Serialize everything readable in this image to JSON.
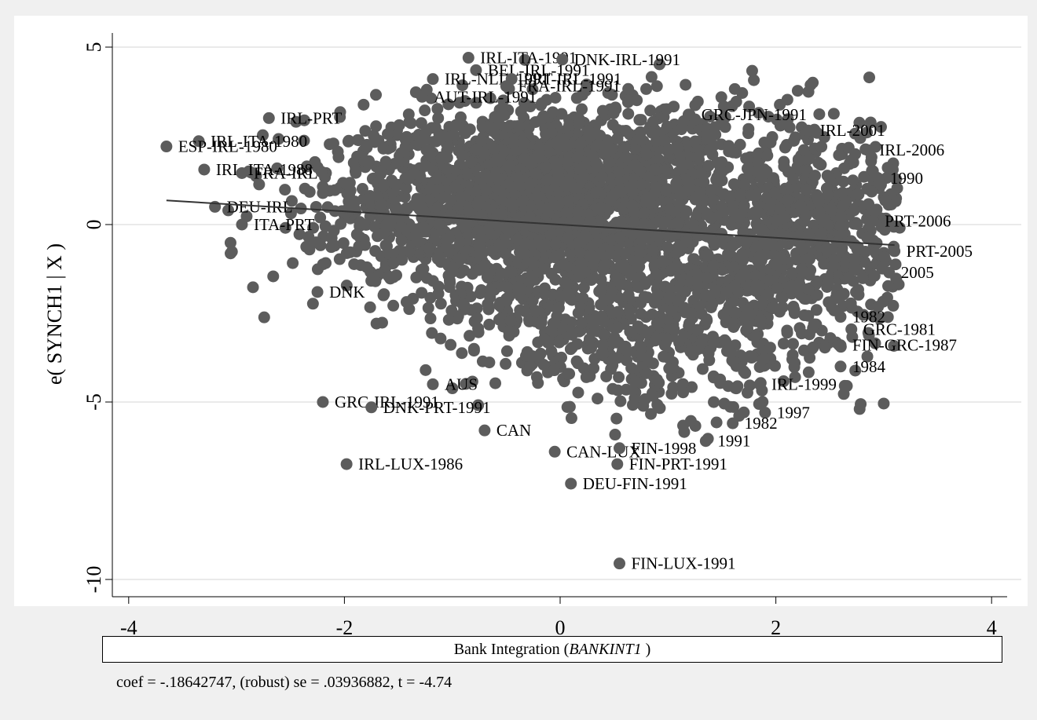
{
  "chart_data": {
    "type": "scatter",
    "title": "",
    "ylabel": "e( SYNCH1 | X )",
    "xlabel": "Bank Integration (",
    "xlabel_italic": "BANKINT1",
    "xlabel_close": " )",
    "caption": "coef = -.18642747, (robust) se = .03936882, t = -4.74",
    "xlim": [
      -4.2,
      4.2
    ],
    "ylim": [
      -10.5,
      5.4
    ],
    "xticks": [
      -4,
      -2,
      0,
      2,
      4
    ],
    "xtick_labels": [
      "-4",
      "-2",
      "0",
      "2",
      "4"
    ],
    "yticks": [
      5,
      0,
      -5,
      -10
    ],
    "ytick_labels": [
      "5",
      "0",
      "-5",
      "-10"
    ],
    "grid": true,
    "fit_line": {
      "slope": -0.18642747,
      "intercept": 0.0,
      "x": [
        -3.65,
        3.1
      ]
    },
    "labeled_points": [
      {
        "x": -0.85,
        "y": 4.7,
        "label": "IRL-ITA-1991"
      },
      {
        "x": 0.02,
        "y": 4.65,
        "label": "DNK-IRL-1991"
      },
      {
        "x": -0.78,
        "y": 4.35,
        "label": "BEL-IRL-1991"
      },
      {
        "x": -1.18,
        "y": 4.1,
        "label": "IRL-NLD-1991"
      },
      {
        "x": -0.45,
        "y": 4.1,
        "label": "PRT-IRL-1991"
      },
      {
        "x": -0.5,
        "y": 3.9,
        "label": "FRA-IRL-1991"
      },
      {
        "x": -1.28,
        "y": 3.6,
        "label": "AUT-IRL-1991"
      },
      {
        "x": 1.2,
        "y": 3.1,
        "label": "GRC-JPN-1991"
      },
      {
        "x": -2.7,
        "y": 3.0,
        "label": "IRL-PRT"
      },
      {
        "x": 2.3,
        "y": 2.65,
        "label": "IRL-2001"
      },
      {
        "x": -3.35,
        "y": 2.35,
        "label": "IRL-ITA-1980"
      },
      {
        "x": -3.65,
        "y": 2.2,
        "label": "ESP-IRL-1980"
      },
      {
        "x": 2.85,
        "y": 2.1,
        "label": "IRL-2006"
      },
      {
        "x": -3.3,
        "y": 1.55,
        "label": "IRL-ITA-1988"
      },
      {
        "x": -2.95,
        "y": 1.45,
        "label": "FRA-IRL"
      },
      {
        "x": 2.95,
        "y": 1.3,
        "label": "1990"
      },
      {
        "x": -3.2,
        "y": 0.5,
        "label": "DEU-IRL"
      },
      {
        "x": -2.95,
        "y": 0.0,
        "label": "ITA-PRT"
      },
      {
        "x": 2.9,
        "y": 0.1,
        "label": "PRT-2006"
      },
      {
        "x": 3.1,
        "y": -0.75,
        "label": "PRT-2005"
      },
      {
        "x": 3.05,
        "y": -1.35,
        "label": "2005"
      },
      {
        "x": -2.25,
        "y": -1.9,
        "label": "DNK"
      },
      {
        "x": 2.6,
        "y": -2.6,
        "label": "1982"
      },
      {
        "x": 2.7,
        "y": -2.95,
        "label": "GRC-1981"
      },
      {
        "x": 2.6,
        "y": -3.4,
        "label": "FIN-GRC-1987"
      },
      {
        "x": 2.6,
        "y": -4.0,
        "label": "1984"
      },
      {
        "x": 1.85,
        "y": -4.5,
        "label": "IRL-1999"
      },
      {
        "x": -1.18,
        "y": -4.5,
        "label": "AUS"
      },
      {
        "x": -2.2,
        "y": -5.0,
        "label": "GRC-IRL-1991"
      },
      {
        "x": -1.75,
        "y": -5.15,
        "label": "DNK-PRT-1991"
      },
      {
        "x": 1.9,
        "y": -5.3,
        "label": "1997"
      },
      {
        "x": 1.6,
        "y": -5.6,
        "label": "1982"
      },
      {
        "x": -0.7,
        "y": -5.8,
        "label": "CAN"
      },
      {
        "x": 1.35,
        "y": -6.1,
        "label": "1991"
      },
      {
        "x": -0.05,
        "y": -6.4,
        "label": "CAN-LUX"
      },
      {
        "x": 0.55,
        "y": -6.3,
        "label": "FIN-1998"
      },
      {
        "x": 0.53,
        "y": -6.75,
        "label": "FIN-PRT-1991"
      },
      {
        "x": -1.98,
        "y": -6.75,
        "label": "IRL-LUX-1986"
      },
      {
        "x": 0.1,
        "y": -7.3,
        "label": "DEU-FIN-1991"
      },
      {
        "x": 0.55,
        "y": -9.55,
        "label": "FIN-LUX-1991"
      }
    ],
    "cloud": [
      {
        "cx": 0.0,
        "cy": 1.2,
        "sx": 0.75,
        "sy": 1.05,
        "n": 1100
      },
      {
        "cx": -0.3,
        "cy": -0.8,
        "sx": 0.55,
        "sy": 1.3,
        "n": 500
      },
      {
        "cx": 1.3,
        "cy": -0.2,
        "sx": 0.75,
        "sy": 1.9,
        "n": 900
      },
      {
        "cx": 2.5,
        "cy": -0.2,
        "sx": 0.45,
        "sy": 1.6,
        "n": 450
      },
      {
        "cx": -1.4,
        "cy": 0.6,
        "sx": 0.6,
        "sy": 1.2,
        "n": 450
      },
      {
        "cx": 0.8,
        "cy": -3.5,
        "sx": 0.8,
        "sy": 0.9,
        "n": 300
      }
    ],
    "series": [
      {
        "values": [
          1
        ]
      }
    ]
  }
}
